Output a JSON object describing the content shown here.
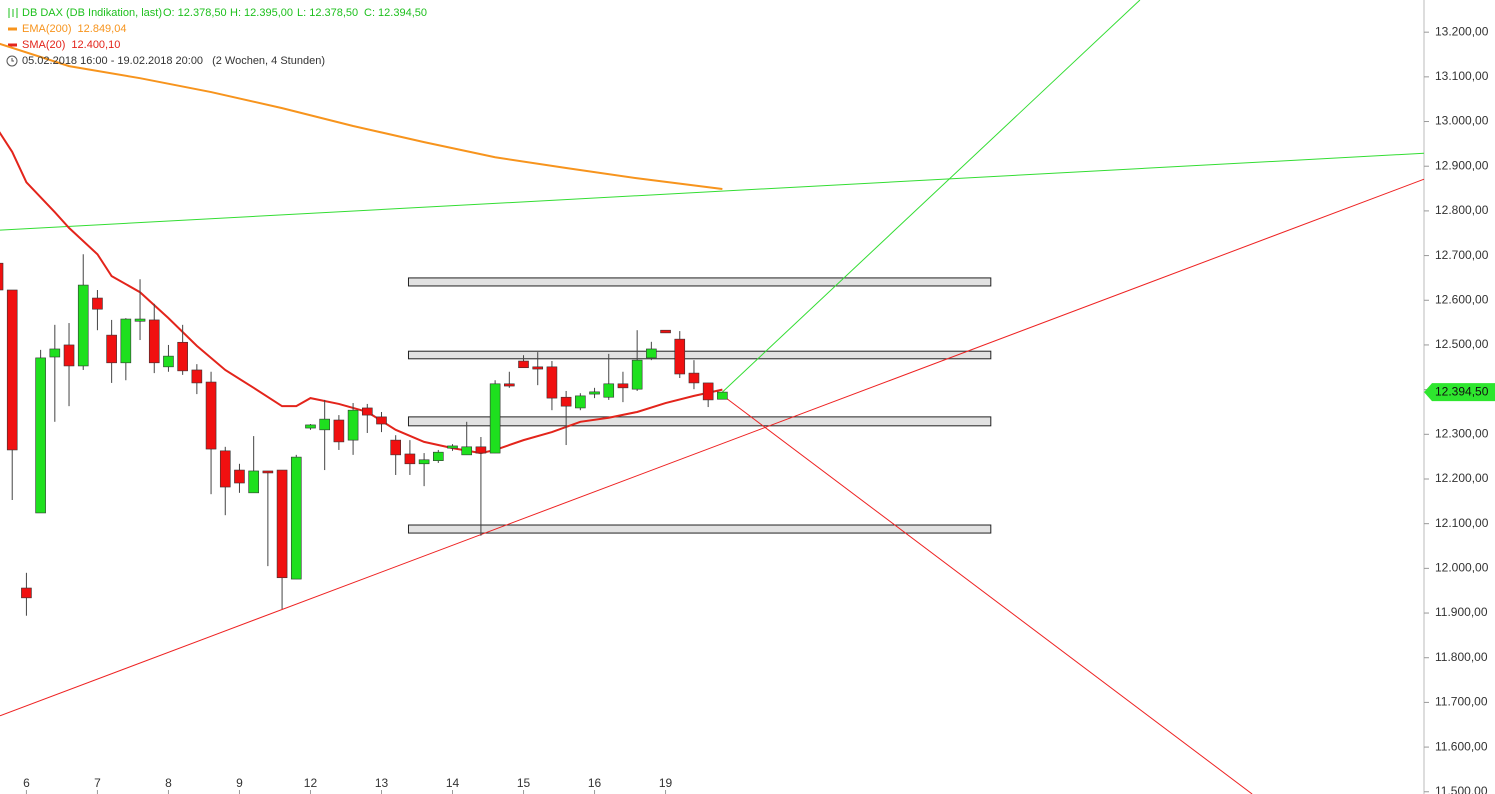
{
  "chart_data": {
    "type": "candlestick",
    "title": "DB DAX (DB Indikation, last)",
    "ohlc_labels": [
      "O: 12.378,50",
      "H: 12.395,00",
      "L: 12.378,50",
      "C: 12.394,50"
    ],
    "period": "05.02.2018 16:00 - 19.02.2018 20:00",
    "period_length": "(2 Wochen, 4 Stunden)",
    "up_color": "#1ee01e",
    "down_color": "#f01010",
    "open": [
      12683,
      12623,
      11956,
      12124,
      12473,
      12500,
      12453,
      12605,
      12522,
      12460,
      12553,
      12556,
      12451,
      12506,
      12444,
      12417,
      12263,
      12220,
      12169,
      12218,
      12220,
      11976,
      12314,
      12310,
      12332,
      12287,
      12359,
      12339,
      12287,
      12256,
      12234,
      12241,
      12269,
      12254,
      12272,
      12258,
      12413,
      12464,
      12451,
      12451,
      12383,
      12359,
      12390,
      12383,
      12413,
      12401,
      12471,
      12533,
      12513,
      12437,
      12415,
      12378.5
    ],
    "high": [
      12683,
      12623,
      11990,
      12489,
      12545,
      12549,
      12703,
      12623,
      12556,
      12560,
      12647,
      12592,
      12500,
      12545,
      12457,
      12440,
      12272,
      12234,
      12296,
      12218,
      12220,
      12254,
      12323,
      12377,
      12343,
      12370,
      12368,
      12350,
      12298,
      12287,
      12258,
      12265,
      12278,
      12328,
      12294,
      12421,
      12440,
      12477,
      12484,
      12464,
      12397,
      12392,
      12404,
      12480,
      12440,
      12533,
      12507,
      12533,
      12531,
      12466,
      12415,
      12395
    ],
    "low": [
      12623,
      12153,
      11894,
      12124,
      12328,
      12363,
      12444,
      12533,
      12415,
      12421,
      12511,
      12437,
      12440,
      12433,
      12390,
      12166,
      12119,
      12169,
      12169,
      12005,
      11909,
      11976,
      12310,
      12220,
      12265,
      12254,
      12303,
      12305,
      12209,
      12209,
      12184,
      12236,
      12263,
      12254,
      12073,
      12258,
      12404,
      12449,
      12410,
      12354,
      12276,
      12354,
      12381,
      12377,
      12372,
      12397,
      12466,
      12527,
      12426,
      12401,
      12361,
      12378.5
    ],
    "close": [
      12623,
      12265,
      11934,
      12471,
      12491,
      12453,
      12634,
      12580,
      12460,
      12558,
      12558,
      12460,
      12475,
      12442,
      12415,
      12267,
      12182,
      12191,
      12218,
      12216,
      11979,
      12249,
      12321,
      12334,
      12283,
      12354,
      12343,
      12323,
      12254,
      12234,
      12243,
      12260,
      12274,
      12272,
      12258,
      12413,
      12408,
      12449,
      12446,
      12381,
      12363,
      12386,
      12395,
      12413,
      12404,
      12466,
      12491,
      12527,
      12435,
      12415,
      12377,
      12394.5
    ],
    "series": [
      {
        "name": "EMA(200)",
        "last_label": "12.849,04",
        "color": "#f7941d",
        "x": [
          0,
          5,
          10,
          15,
          20,
          25,
          30,
          35,
          40,
          45,
          51
        ],
        "values": [
          13175,
          13124,
          13097,
          13066,
          13030,
          12990,
          12954,
          12920,
          12896,
          12873,
          12849
        ]
      },
      {
        "name": "SMA(20)",
        "last_label": "12.400,10",
        "color": "#e3241b",
        "x": [
          0,
          1,
          2,
          4,
          5,
          7,
          8,
          10,
          12,
          14,
          16,
          18,
          20,
          21,
          22,
          24,
          26,
          28,
          30,
          32,
          34,
          35,
          37,
          39,
          41,
          43,
          45,
          47,
          49,
          51
        ],
        "values": [
          12981,
          12932,
          12864,
          12797,
          12762,
          12703,
          12654,
          12618,
          12560,
          12498,
          12444,
          12404,
          12363,
          12363,
          12381,
          12368,
          12350,
          12310,
          12283,
          12269,
          12258,
          12265,
          12287,
          12305,
          12328,
          12337,
          12350,
          12370,
          12386,
          12400
        ]
      }
    ],
    "trendlines": [
      {
        "color": "#33dd33",
        "x": [
          51,
          80.4
        ],
        "y": [
          12394.5,
          13272
        ]
      },
      {
        "color": "#33dd33",
        "x": [
          0.14,
          100.4
        ],
        "y": [
          12757,
          12929
        ]
      },
      {
        "color": "#ee2222",
        "x": [
          0.14,
          100.4
        ],
        "y": [
          11670,
          12871
        ]
      },
      {
        "color": "#ee2222",
        "x": [
          50.6,
          88.3
        ],
        "y": [
          12397,
          11495
        ]
      }
    ],
    "zones": [
      {
        "x": [
          28.9,
          69.9
        ],
        "y": [
          12632,
          12650
        ]
      },
      {
        "x": [
          28.9,
          69.9
        ],
        "y": [
          12469,
          12486
        ]
      },
      {
        "x": [
          28.9,
          69.9
        ],
        "y": [
          12319,
          12339
        ]
      },
      {
        "x": [
          28.9,
          69.9
        ],
        "y": [
          12079,
          12097
        ]
      }
    ],
    "last_price": {
      "value": 12394.5,
      "label": "12.394,50"
    },
    "xlim": [
      0.14,
      100.4
    ],
    "xticks": [
      {
        "value": 2,
        "label": "6"
      },
      {
        "value": 7,
        "label": "7"
      },
      {
        "value": 12,
        "label": "8"
      },
      {
        "value": 17,
        "label": "9"
      },
      {
        "value": 22,
        "label": "12"
      },
      {
        "value": 27,
        "label": "13"
      },
      {
        "value": 32,
        "label": "14"
      },
      {
        "value": 37,
        "label": "15"
      },
      {
        "value": 42,
        "label": "16"
      },
      {
        "value": 47,
        "label": "19"
      }
    ],
    "ylim": [
      11495,
      13272
    ],
    "yticks": [
      {
        "value": 13200,
        "label": "13.200,00"
      },
      {
        "value": 13100,
        "label": "13.100,00"
      },
      {
        "value": 13000,
        "label": "13.000,00"
      },
      {
        "value": 12900,
        "label": "12.900,00"
      },
      {
        "value": 12800,
        "label": "12.800,00"
      },
      {
        "value": 12700,
        "label": "12.700,00"
      },
      {
        "value": 12600,
        "label": "12.600,00"
      },
      {
        "value": 12500,
        "label": "12.500,00"
      },
      {
        "value": 12400,
        "label": "12.400,00"
      },
      {
        "value": 12300,
        "label": "12.300,00"
      },
      {
        "value": 12200,
        "label": "12.200,00"
      },
      {
        "value": 12100,
        "label": "12.100,00"
      },
      {
        "value": 12000,
        "label": "12.000,00"
      },
      {
        "value": 11900,
        "label": "11.900,00"
      },
      {
        "value": 11800,
        "label": "11.800,00"
      },
      {
        "value": 11700,
        "label": "11.700,00"
      },
      {
        "value": 11600,
        "label": "11.600,00"
      },
      {
        "value": 11500,
        "label": "11.500,00"
      }
    ]
  }
}
